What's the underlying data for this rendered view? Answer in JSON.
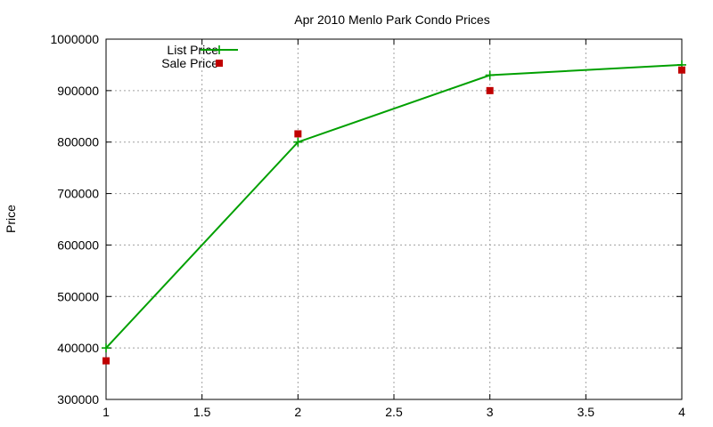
{
  "chart_data": {
    "type": "line",
    "title": "Apr 2010 Menlo Park Condo Prices",
    "xlabel": "",
    "ylabel": "Price",
    "xlim": [
      1,
      4
    ],
    "ylim": [
      300000,
      1000000
    ],
    "x_ticks": [
      1,
      1.5,
      2,
      2.5,
      3,
      3.5,
      4
    ],
    "x_tick_labels": [
      "1",
      "1.5",
      "2",
      "2.5",
      "3",
      "3.5",
      "4"
    ],
    "y_ticks": [
      300000,
      400000,
      500000,
      600000,
      700000,
      800000,
      900000,
      1000000
    ],
    "y_tick_labels": [
      "300000",
      "400000",
      "500000",
      "600000",
      "700000",
      "800000",
      "900000",
      "1000000"
    ],
    "grid": true,
    "legend_position": "top-left",
    "series": [
      {
        "name": "List Price",
        "style": "line-with-plus-markers",
        "color": "#00a000",
        "x": [
          1,
          2,
          3,
          4
        ],
        "y": [
          400000,
          800000,
          930000,
          950000
        ]
      },
      {
        "name": "Sale Price",
        "style": "square-markers",
        "color": "#c00000",
        "x": [
          1,
          2,
          3,
          4
        ],
        "y": [
          375000,
          816000,
          900000,
          940000
        ]
      }
    ]
  }
}
